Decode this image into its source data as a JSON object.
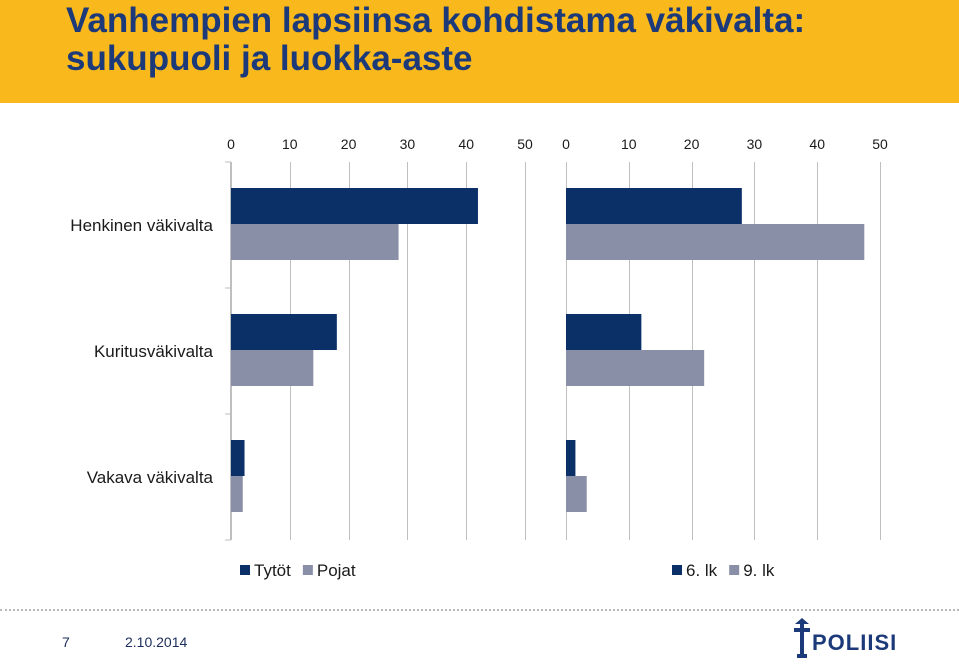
{
  "slide": {
    "title": "Vanhempien lapsiinsa kohdistama väkivalta:\nsukupuoli ja luokka-aste",
    "page_number": "7",
    "date": "2.10.2014",
    "logo_text": "POLIISI"
  },
  "colors": {
    "title_band": "#f9b81b",
    "title_text": "#1c3a7a",
    "series_dark": "#0b3068",
    "series_light": "#8a8fa8",
    "grid": "#bfbfbf"
  },
  "chart_data": [
    {
      "type": "bar",
      "orientation": "horizontal",
      "title": "",
      "categories": [
        "Henkinen väkivalta",
        "Kuritusväkivalta",
        "Vakava väkivalta"
      ],
      "series": [
        {
          "name": "Tytöt",
          "values": [
            42,
            18,
            2.3
          ]
        },
        {
          "name": "Pojat",
          "values": [
            28.5,
            14,
            2
          ]
        }
      ],
      "xlim": [
        0,
        50
      ],
      "x_ticks": [
        "0",
        "10",
        "20",
        "30",
        "40",
        "50"
      ],
      "xaxis_position": "top",
      "grid": true,
      "legend": "bottom"
    },
    {
      "type": "bar",
      "orientation": "horizontal",
      "title": "",
      "categories": [
        "Henkinen väkivalta",
        "Kuritusväkivalta",
        "Vakava väkivalta"
      ],
      "series": [
        {
          "name": "6. lk",
          "values": [
            28,
            12,
            1.5
          ]
        },
        {
          "name": "9. lk",
          "values": [
            47.5,
            22,
            3.3
          ]
        }
      ],
      "xlim": [
        0,
        50
      ],
      "x_ticks": [
        "0",
        "10",
        "20",
        "30",
        "40",
        "50"
      ],
      "xaxis_position": "top",
      "grid": true,
      "legend": "bottom"
    }
  ]
}
